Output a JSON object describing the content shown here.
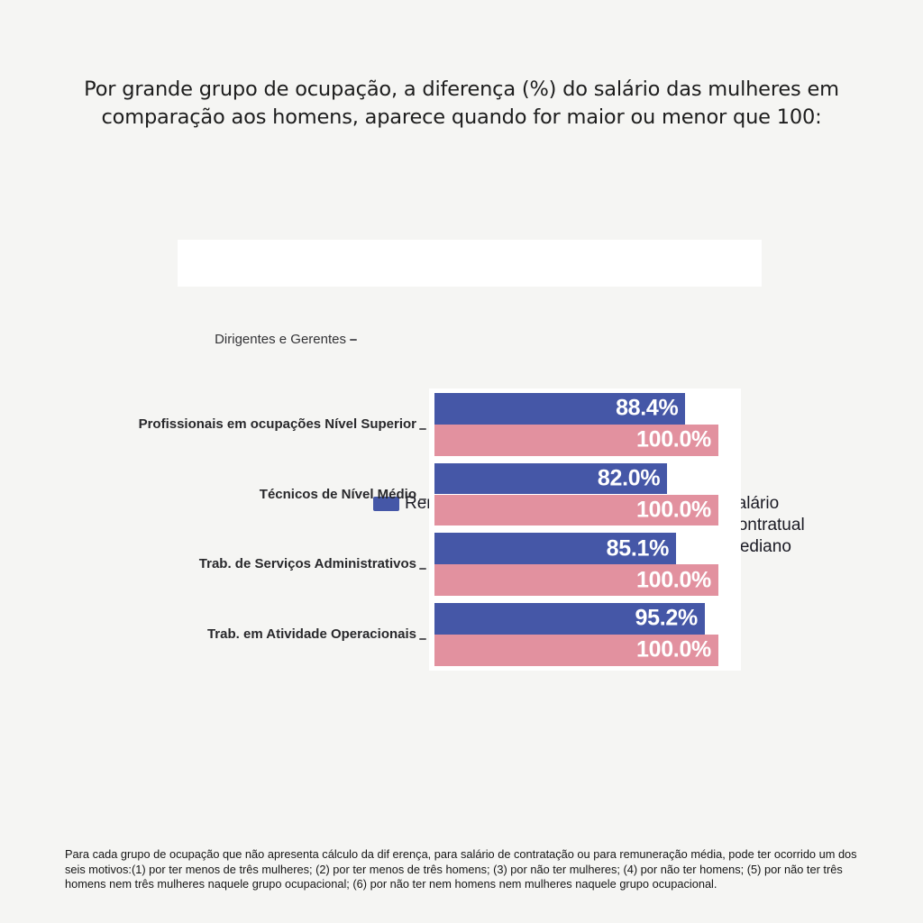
{
  "title": "Por grande grupo de ocupação, a diferença (%) do salário das mulheres em comparação aos homens, aparece quando for maior ou menor que 100:",
  "legend": [
    {
      "label": "Remuneração Mensal Média",
      "color": "#4557a7"
    },
    {
      "label": "Salário Contratual Mediano",
      "color": "#e2919f"
    }
  ],
  "chart_data": {
    "type": "bar",
    "orientation": "horizontal",
    "title": "Por grande grupo de ocupação, a diferença (%) do salário das mulheres em comparação aos homens, aparece quando for maior ou menor que 100:",
    "categories": [
      "Dirigentes e Gerentes",
      "Profissionais em ocupações Nível Superior",
      "Técnicos de Nível Médio",
      "Trab. de Serviços Administrativos",
      "Trab. em Atividade Operacionais"
    ],
    "series": [
      {
        "name": "Remuneração Mensal Média",
        "color": "#4557a7",
        "values": [
          null,
          88.4,
          82.0,
          85.1,
          95.2
        ],
        "labels": [
          "",
          "88.4%",
          "82.0%",
          "85.1%",
          "95.2%"
        ]
      },
      {
        "name": "Salário Contratual Mediano",
        "color": "#e2919f",
        "values": [
          null,
          100.0,
          100.0,
          100.0,
          100.0
        ],
        "labels": [
          "",
          "100.0%",
          "100.0%",
          "100.0%",
          "100.0%"
        ]
      }
    ],
    "xlim": [
      0,
      105
    ],
    "grid": false,
    "legend_position": "top",
    "value_labels_inside_bars": true
  },
  "footer": "Para cada grupo de ocupação que não apresenta cálculo da dif erença, para salário de contratação ou para remuneração média, pode ter ocorrido um dos seis motivos:(1) por ter menos de três mulheres; (2) por ter menos de três homens; (3) por não ter mulheres; (4) por não ter homens; (5) por não ter três homens nem três mulheres naquele grupo ocupacional; (6) por não ter nem homens nem mulheres naquele grupo ocupacional."
}
